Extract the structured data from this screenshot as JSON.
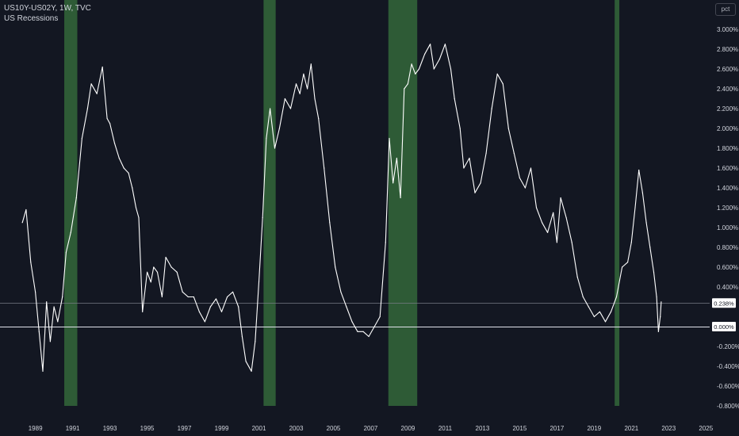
{
  "legend": {
    "symbol_line": "US10Y-US02Y, 1W, TVC",
    "indicator_line": "US Recessions"
  },
  "unit_label": "pct",
  "colors": {
    "background": "#131722",
    "line": "#ffffff",
    "recession": "#2e5b36",
    "axis_text": "#d1d4dc"
  },
  "chart_data": {
    "type": "line",
    "title": "",
    "xlabel": "",
    "ylabel": "",
    "ylim": [
      -0.8,
      3.2
    ],
    "xlim": [
      1987.1,
      2025.2
    ],
    "y_ticks": [
      "3.000%",
      "2.800%",
      "2.600%",
      "2.400%",
      "2.200%",
      "2.000%",
      "1.800%",
      "1.600%",
      "1.400%",
      "1.200%",
      "1.000%",
      "0.800%",
      "0.600%",
      "0.400%",
      "-0.200%",
      "-0.400%",
      "-0.600%",
      "-0.800%"
    ],
    "y_tick_values": [
      3.0,
      2.8,
      2.6,
      2.4,
      2.2,
      2.0,
      1.8,
      1.6,
      1.4,
      1.2,
      1.0,
      0.8,
      0.6,
      0.4,
      -0.2,
      -0.4,
      -0.6,
      -0.8
    ],
    "x_ticks": [
      "1989",
      "1991",
      "1993",
      "1995",
      "1997",
      "1999",
      "2001",
      "2003",
      "2005",
      "2007",
      "2009",
      "2011",
      "2013",
      "2015",
      "2017",
      "2019",
      "2021",
      "2023",
      "2025"
    ],
    "x_tick_values": [
      1989,
      1991,
      1993,
      1995,
      1997,
      1999,
      2001,
      2003,
      2005,
      2007,
      2009,
      2011,
      2013,
      2015,
      2017,
      2019,
      2021,
      2023,
      2025
    ],
    "price_labels": [
      {
        "label": "0.238%",
        "value": 0.238
      },
      {
        "label": "0.000%",
        "value": 0.0
      }
    ],
    "recessions": [
      {
        "start": 1990.55,
        "end": 1991.25
      },
      {
        "start": 2001.25,
        "end": 2001.9
      },
      {
        "start": 2007.95,
        "end": 2009.5
      },
      {
        "start": 2020.1,
        "end": 2020.35
      }
    ],
    "series": [
      {
        "x": [
          1988.3,
          1988.5,
          1988.75,
          1989.0,
          1989.2,
          1989.4,
          1989.6,
          1989.8,
          1990.0,
          1990.2,
          1990.45,
          1990.65,
          1990.9,
          1991.2,
          1991.5,
          1991.8,
          1992.0,
          1992.3,
          1992.6,
          1992.85,
          1993.0,
          1993.25,
          1993.5,
          1993.75,
          1994.0,
          1994.2,
          1994.4,
          1994.55,
          1994.75,
          1995.0,
          1995.2,
          1995.35,
          1995.55,
          1995.8,
          1996.0,
          1996.3,
          1996.6,
          1996.9,
          1997.2,
          1997.5,
          1997.8,
          1998.1,
          1998.4,
          1998.7,
          1999.0,
          1999.3,
          1999.6,
          1999.9,
          2000.1,
          2000.3,
          2000.6,
          2000.8,
          2001.0,
          2001.2,
          2001.4,
          2001.6,
          2001.85,
          2002.1,
          2002.4,
          2002.7,
          2003.0,
          2003.2,
          2003.4,
          2003.6,
          2003.8,
          2004.0,
          2004.2,
          2004.5,
          2004.8,
          2005.1,
          2005.4,
          2005.7,
          2006.0,
          2006.3,
          2006.6,
          2006.9,
          2007.2,
          2007.5,
          2007.8,
          2008.0,
          2008.2,
          2008.4,
          2008.6,
          2008.8,
          2009.0,
          2009.2,
          2009.4,
          2009.6,
          2009.9,
          2010.2,
          2010.4,
          2010.7,
          2011.0,
          2011.3,
          2011.5,
          2011.8,
          2012.0,
          2012.3,
          2012.6,
          2012.9,
          2013.2,
          2013.5,
          2013.8,
          2014.1,
          2014.4,
          2014.7,
          2015.0,
          2015.3,
          2015.6,
          2015.9,
          2016.2,
          2016.5,
          2016.8,
          2017.0,
          2017.2,
          2017.5,
          2017.8,
          2018.1,
          2018.4,
          2018.7,
          2019.0,
          2019.3,
          2019.6,
          2019.9,
          2020.2,
          2020.5,
          2020.8,
          2021.0,
          2021.2,
          2021.4,
          2021.6,
          2021.8,
          2022.0,
          2022.2,
          2022.35,
          2022.45,
          2022.55,
          2022.6
        ],
        "values": [
          1.05,
          1.18,
          0.65,
          0.35,
          -0.05,
          -0.45,
          0.25,
          -0.15,
          0.2,
          0.05,
          0.3,
          0.75,
          0.95,
          1.3,
          1.9,
          2.2,
          2.45,
          2.35,
          2.62,
          2.1,
          2.05,
          1.85,
          1.7,
          1.6,
          1.55,
          1.4,
          1.2,
          1.1,
          0.15,
          0.55,
          0.45,
          0.6,
          0.55,
          0.3,
          0.7,
          0.6,
          0.55,
          0.35,
          0.3,
          0.3,
          0.15,
          0.05,
          0.2,
          0.28,
          0.15,
          0.3,
          0.35,
          0.2,
          -0.1,
          -0.35,
          -0.45,
          -0.15,
          0.45,
          1.1,
          1.9,
          2.2,
          1.8,
          2.0,
          2.3,
          2.2,
          2.45,
          2.35,
          2.55,
          2.4,
          2.65,
          2.3,
          2.1,
          1.6,
          1.05,
          0.6,
          0.35,
          0.2,
          0.05,
          -0.05,
          -0.05,
          -0.1,
          0.0,
          0.1,
          0.85,
          1.9,
          1.45,
          1.7,
          1.3,
          2.4,
          2.45,
          2.65,
          2.55,
          2.6,
          2.75,
          2.85,
          2.6,
          2.7,
          2.85,
          2.6,
          2.3,
          2.0,
          1.6,
          1.7,
          1.35,
          1.45,
          1.75,
          2.2,
          2.55,
          2.45,
          2.0,
          1.75,
          1.5,
          1.4,
          1.6,
          1.2,
          1.05,
          0.95,
          1.15,
          0.85,
          1.3,
          1.1,
          0.85,
          0.5,
          0.3,
          0.2,
          0.1,
          0.15,
          0.05,
          0.15,
          0.3,
          0.6,
          0.65,
          0.85,
          1.2,
          1.58,
          1.35,
          1.05,
          0.8,
          0.55,
          0.3,
          -0.05,
          0.1,
          0.25
        ]
      }
    ]
  }
}
